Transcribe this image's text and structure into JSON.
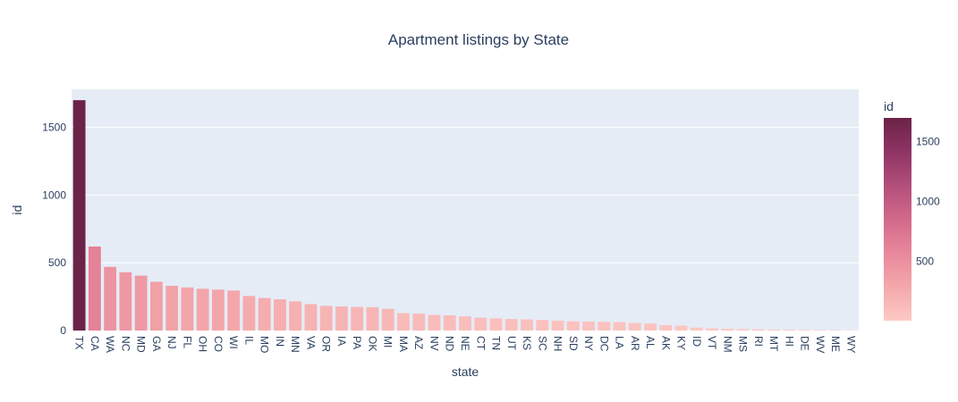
{
  "chart_data": {
    "type": "bar",
    "title": "Apartment listings by State",
    "xlabel": "state",
    "ylabel": "id",
    "categories": [
      "TX",
      "CA",
      "WA",
      "NC",
      "MD",
      "GA",
      "NJ",
      "FL",
      "OH",
      "CO",
      "WI",
      "IL",
      "MO",
      "IN",
      "MN",
      "VA",
      "OR",
      "IA",
      "PA",
      "OK",
      "MI",
      "MA",
      "AZ",
      "NV",
      "ND",
      "NE",
      "CT",
      "TN",
      "UT",
      "KS",
      "SC",
      "NH",
      "SD",
      "NY",
      "DC",
      "LA",
      "AR",
      "AL",
      "AK",
      "KY",
      "ID",
      "VT",
      "NM",
      "MS",
      "RI",
      "MT",
      "HI",
      "DE",
      "WV",
      "ME",
      "WY"
    ],
    "values": [
      1700,
      620,
      470,
      430,
      405,
      360,
      330,
      318,
      308,
      302,
      295,
      255,
      240,
      230,
      215,
      195,
      182,
      178,
      174,
      172,
      160,
      128,
      125,
      115,
      112,
      105,
      95,
      90,
      85,
      82,
      78,
      72,
      68,
      66,
      64,
      62,
      56,
      52,
      40,
      36,
      22,
      16,
      13,
      11,
      9,
      7,
      6,
      5,
      4,
      3,
      2
    ],
    "ylim": [
      0,
      1780
    ],
    "yticks": [
      0,
      500,
      1000,
      1500
    ],
    "grid": true,
    "colorbar": {
      "title": "id",
      "range": [
        2,
        1700
      ],
      "ticks": [
        500,
        1000,
        1500
      ],
      "colors": [
        "#fdc9c5",
        "#f4a8ab",
        "#e8889b",
        "#d2698a",
        "#b34f7b",
        "#8e3464",
        "#6b2347"
      ]
    },
    "colors": {
      "plot_bg": "#e5ecf6",
      "grid": "#ffffff",
      "text": "#2a3f5f"
    }
  }
}
